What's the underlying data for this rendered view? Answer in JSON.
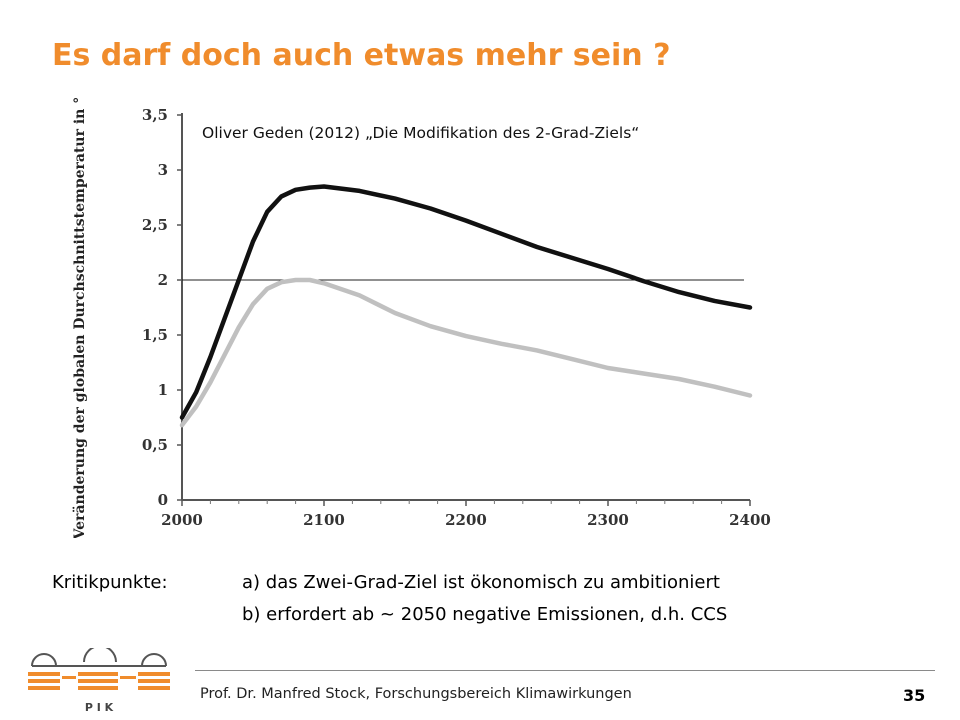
{
  "slide": {
    "title": "Es darf doch auch etwas mehr sein ?",
    "annotation": "Oliver Geden (2012) „Die Modifikation des 2-Grad-Ziels“",
    "critique_label": "Kritikpunkte:",
    "critique_items": [
      "a) das Zwei-Grad-Ziel ist ökonomisch zu ambitioniert",
      "b) erfordert ab ~ 2050 negative Emissionen, d.h. CCS"
    ],
    "footer": "Prof. Dr. Manfred Stock, Forschungsbereich Klimawirkungen",
    "page_number": "35",
    "logo_text": "P I K"
  },
  "colors": {
    "title": "#f08c2c",
    "logo": "#f08c2c",
    "series_black": "#111111",
    "series_grey": "#c0c0c0"
  },
  "chart_data": {
    "type": "line",
    "ylabel": "Veränderung der globalen Durchschnittstemperatur in °C",
    "xlabel": "",
    "xlim": [
      2000,
      2400
    ],
    "ylim": [
      0,
      3.5
    ],
    "xticks": [
      "2000",
      "2100",
      "2200",
      "2300",
      "2400"
    ],
    "yticks": [
      "0",
      "0,5",
      "1",
      "1,5",
      "2",
      "2,5",
      "3",
      "3,5"
    ],
    "reference_line": {
      "y": 2
    },
    "series": [
      {
        "color": "#111111",
        "x": [
          2000,
          2010,
          2020,
          2030,
          2040,
          2050,
          2060,
          2070,
          2080,
          2090,
          2100,
          2125,
          2150,
          2175,
          2200,
          2225,
          2250,
          2275,
          2300,
          2325,
          2350,
          2375,
          2400
        ],
        "y": [
          0.75,
          0.98,
          1.3,
          1.65,
          2.0,
          2.35,
          2.62,
          2.76,
          2.82,
          2.84,
          2.85,
          2.81,
          2.74,
          2.65,
          2.54,
          2.42,
          2.3,
          2.2,
          2.1,
          1.99,
          1.89,
          1.81,
          1.75
        ]
      },
      {
        "color": "#c0c0c0",
        "x": [
          2000,
          2010,
          2020,
          2030,
          2040,
          2050,
          2060,
          2070,
          2080,
          2090,
          2100,
          2125,
          2150,
          2175,
          2200,
          2225,
          2250,
          2275,
          2300,
          2325,
          2350,
          2375,
          2400
        ],
        "y": [
          0.68,
          0.85,
          1.07,
          1.32,
          1.57,
          1.78,
          1.92,
          1.98,
          2.0,
          2.0,
          1.97,
          1.86,
          1.7,
          1.58,
          1.49,
          1.42,
          1.36,
          1.28,
          1.2,
          1.15,
          1.1,
          1.03,
          0.95
        ]
      }
    ]
  }
}
